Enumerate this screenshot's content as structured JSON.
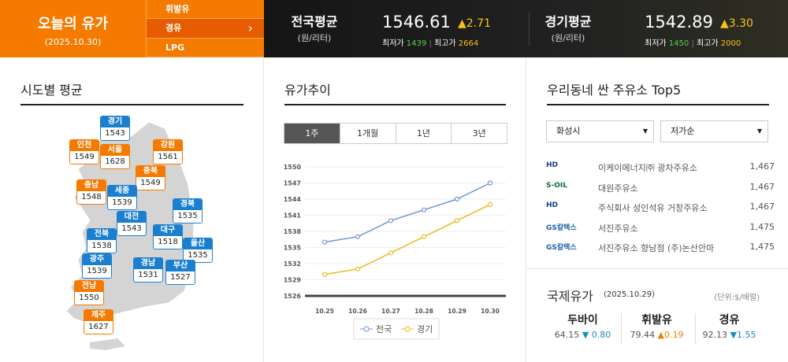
{
  "today": {
    "title": "오늘의 유가",
    "date": "(2025.10.30)"
  },
  "fuel_menu": [
    {
      "label": "휘발유"
    },
    {
      "label": "경유",
      "selected": true
    },
    {
      "label": "LPG"
    }
  ],
  "national": {
    "label": "전국평균",
    "unit": "(원/리터)",
    "price": "1546.61",
    "change": "▲2.71",
    "min_label": "최저가",
    "min": "1439",
    "max_label": "최고가",
    "max": "2664"
  },
  "gyeonggi": {
    "label": "경기평균",
    "unit": "(원/리터)",
    "price": "1542.89",
    "change": "▲3.30",
    "min_label": "최저가",
    "min": "1450",
    "max_label": "최고가",
    "max": "2000"
  },
  "regions_title": "시도별 평균",
  "regions": [
    {
      "name": "경기",
      "price": "1543"
    },
    {
      "name": "인천",
      "price": "1549"
    },
    {
      "name": "서울",
      "price": "1628"
    },
    {
      "name": "강원",
      "price": "1561"
    },
    {
      "name": "충북",
      "price": "1549"
    },
    {
      "name": "충남",
      "price": "1548"
    },
    {
      "name": "세종",
      "price": "1539"
    },
    {
      "name": "경북",
      "price": "1535"
    },
    {
      "name": "대전",
      "price": "1543"
    },
    {
      "name": "대구",
      "price": "1518"
    },
    {
      "name": "전북",
      "price": "1538"
    },
    {
      "name": "울산",
      "price": "1535"
    },
    {
      "name": "광주",
      "price": "1539"
    },
    {
      "name": "경남",
      "price": "1531"
    },
    {
      "name": "부산",
      "price": "1527"
    },
    {
      "name": "전남",
      "price": "1550"
    },
    {
      "name": "제주",
      "price": "1627"
    }
  ],
  "trend": {
    "title": "유가추이",
    "tabs": [
      "1주",
      "1개월",
      "1년",
      "3년"
    ],
    "active_tab": "1주"
  },
  "chart_data": {
    "type": "line",
    "x": [
      "10.25",
      "10.26",
      "10.27",
      "10.28",
      "10.29",
      "10.30"
    ],
    "series": [
      {
        "name": "전국",
        "color": "#6a95d4",
        "values": [
          1536,
          1537,
          1540,
          1542,
          1544,
          1547
        ]
      },
      {
        "name": "경기",
        "color": "#f0b71a",
        "values": [
          1530,
          1531,
          1534,
          1537,
          1540,
          1543
        ]
      }
    ],
    "ylim": [
      1526,
      1550
    ],
    "yticks": [
      "1526",
      "1529",
      "1532",
      "1535",
      "1538",
      "1541",
      "1544",
      "1547",
      "1550"
    ],
    "legend": "bottom",
    "grid": true
  },
  "top5": {
    "title": "우리동네 싼 주유소 Top5",
    "region": "화성시",
    "sort": "저가순",
    "stations": [
      {
        "brand": "HD",
        "name": "이케이에너지㈜ 광차주유소",
        "price": "1,467"
      },
      {
        "brand": "S-OIL",
        "name": "대원주유소",
        "price": "1,467"
      },
      {
        "brand": "HD",
        "name": "주식회사 성인석유 거창주유소",
        "price": "1,467"
      },
      {
        "brand": "GS칼텍스",
        "name": "서진주유소",
        "price": "1,475"
      },
      {
        "brand": "GS칼텍스",
        "name": "서진주유소 향남점 (주)논산안마",
        "price": "1,475"
      }
    ]
  },
  "intl": {
    "title": "국제유가",
    "date": "(2025.10.29)",
    "unit": "(단위:$/배럴)",
    "items": [
      {
        "name": "두바이",
        "price": "64.15",
        "change": "▼ 0.80"
      },
      {
        "name": "휘발유",
        "price": "79.44",
        "change": "▲0.19"
      },
      {
        "name": "경유",
        "price": "92.13",
        "change": "▼1.55"
      }
    ]
  }
}
